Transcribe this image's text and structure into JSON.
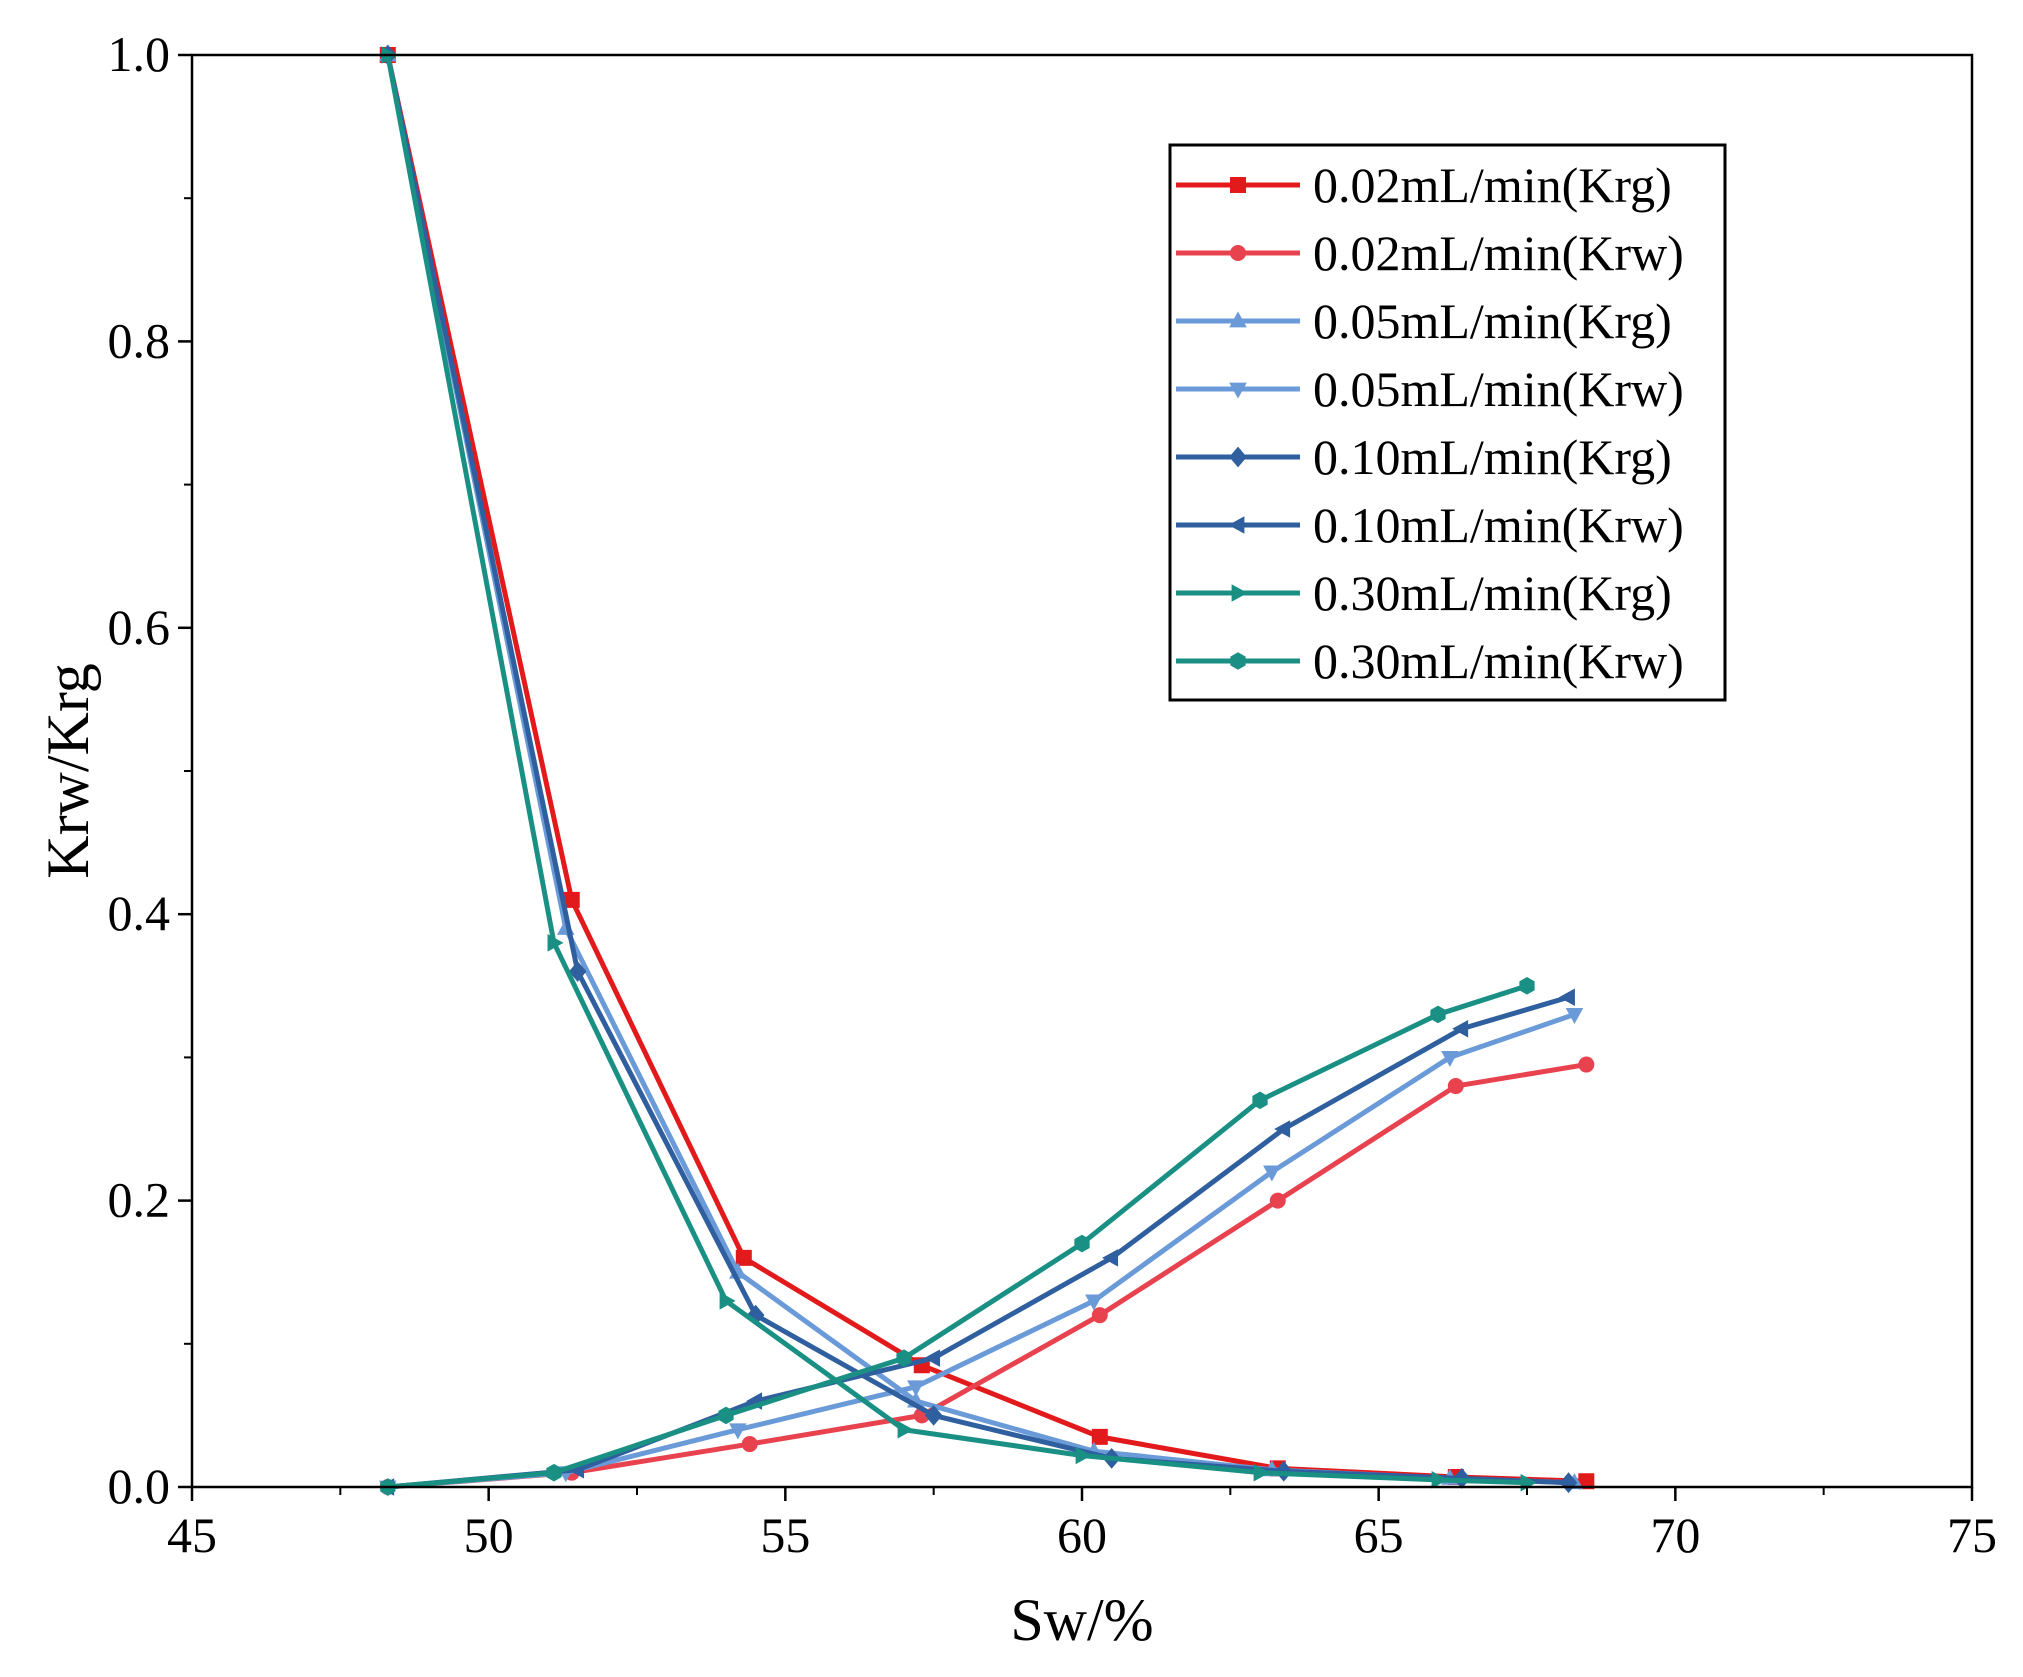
{
  "chart_data": {
    "type": "line",
    "title": "",
    "xlabel": "Sw/%",
    "ylabel": "Krw/Krg",
    "xlim": [
      45,
      75
    ],
    "ylim": [
      0,
      1.0
    ],
    "xticks": [
      "45",
      "50",
      "55",
      "60",
      "65",
      "70",
      "75"
    ],
    "yticks": [
      "0.0",
      "0.2",
      "0.4",
      "0.6",
      "0.8",
      "1.0"
    ],
    "grid": false,
    "legend_position": "top-right",
    "series": [
      {
        "name": "0.02mL/min(Krg)",
        "color": "#e31a1c",
        "marker": "square",
        "x": [
          48.3,
          51.4,
          54.3,
          57.3,
          60.3,
          63.3,
          66.3,
          68.5
        ],
        "y": [
          1.0,
          0.41,
          0.16,
          0.085,
          0.035,
          0.013,
          0.007,
          0.004
        ]
      },
      {
        "name": "0.02mL/min(Krw)",
        "color": "#e8424f",
        "marker": "circle",
        "x": [
          48.3,
          51.4,
          54.4,
          57.3,
          60.3,
          63.3,
          66.3,
          68.5
        ],
        "y": [
          0.0,
          0.01,
          0.03,
          0.05,
          0.12,
          0.2,
          0.28,
          0.295
        ]
      },
      {
        "name": "0.05mL/min(Krg)",
        "color": "#6a9bd8",
        "marker": "triangle-up",
        "x": [
          48.3,
          51.3,
          54.2,
          57.2,
          60.2,
          63.2,
          66.2,
          68.3
        ],
        "y": [
          1.0,
          0.39,
          0.15,
          0.06,
          0.025,
          0.012,
          0.006,
          0.003
        ]
      },
      {
        "name": "0.05mL/min(Krw)",
        "color": "#6a9bd8",
        "marker": "triangle-down",
        "x": [
          48.3,
          51.3,
          54.2,
          57.2,
          60.2,
          63.2,
          66.2,
          68.3
        ],
        "y": [
          0.0,
          0.01,
          0.04,
          0.07,
          0.13,
          0.22,
          0.3,
          0.33
        ]
      },
      {
        "name": "0.10mL/min(Krg)",
        "color": "#2f5f9e",
        "marker": "diamond",
        "x": [
          48.3,
          51.5,
          54.5,
          57.5,
          60.5,
          63.4,
          66.4,
          68.2
        ],
        "y": [
          1.0,
          0.36,
          0.12,
          0.05,
          0.02,
          0.011,
          0.006,
          0.003
        ]
      },
      {
        "name": "0.10mL/min(Krw)",
        "color": "#2f5f9e",
        "marker": "triangle-left",
        "x": [
          48.3,
          51.5,
          54.5,
          57.5,
          60.5,
          63.4,
          66.4,
          68.2
        ],
        "y": [
          0.0,
          0.012,
          0.06,
          0.09,
          0.16,
          0.25,
          0.32,
          0.342
        ]
      },
      {
        "name": "0.30mL/min(Krg)",
        "color": "#199083",
        "marker": "triangle-right",
        "x": [
          48.3,
          51.1,
          54.0,
          57.0,
          60.0,
          63.0,
          66.0,
          67.5
        ],
        "y": [
          1.0,
          0.38,
          0.13,
          0.04,
          0.022,
          0.01,
          0.005,
          0.003
        ]
      },
      {
        "name": "0.30mL/min(Krw)",
        "color": "#199083",
        "marker": "hexagon",
        "x": [
          48.3,
          51.1,
          54.0,
          57.0,
          60.0,
          63.0,
          66.0,
          67.5
        ],
        "y": [
          0.0,
          0.01,
          0.05,
          0.09,
          0.17,
          0.27,
          0.33,
          0.35
        ]
      }
    ]
  }
}
